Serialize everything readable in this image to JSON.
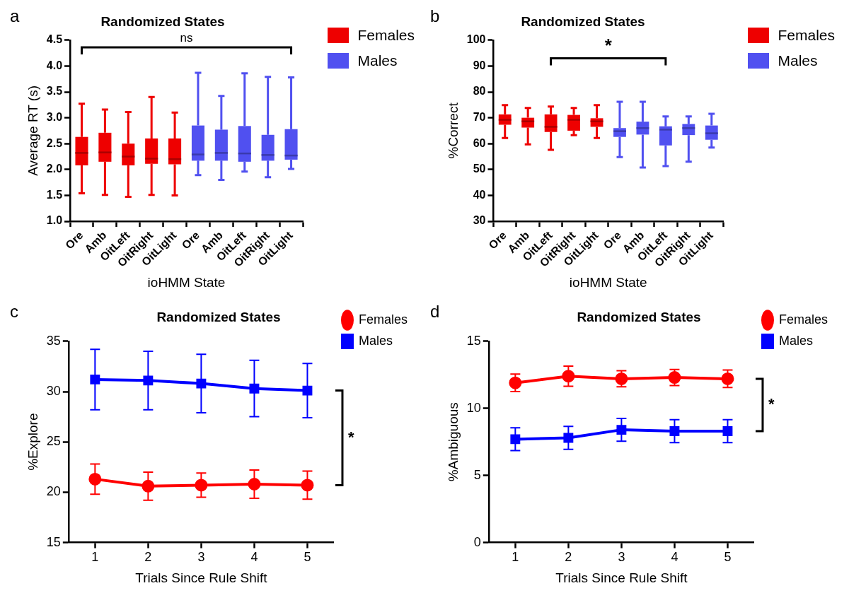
{
  "chart_data": [
    {
      "type": "box",
      "title": "Randomized States",
      "xlabel": "ioHMM State",
      "ylabel": "Average RT (s)",
      "annotations": [
        "a",
        "ns"
      ],
      "categories": [
        "Ore",
        "Amb",
        "OitLeft",
        "OitRight",
        "OitLight",
        "Ore",
        "Amb",
        "OitLeft",
        "OitRight",
        "OitLight"
      ],
      "ylim": [
        1.0,
        4.5
      ],
      "yticks": [
        {
          "value": 1,
          "label": "1.0"
        },
        1.5,
        {
          "value": 2,
          "label": "2.0"
        },
        2.5,
        {
          "value": 3,
          "label": "3.0"
        },
        3.5,
        {
          "value": 4,
          "label": "4.0"
        },
        4.5
      ],
      "legend": "top right",
      "series": [
        {
          "name": "Females",
          "color": "#ee0000",
          "boxes": [
            {
              "low": 1.54,
              "q1": 2.08,
              "median": 2.32,
              "q3": 2.63,
              "high": 3.27
            },
            {
              "low": 1.51,
              "q1": 2.15,
              "median": 2.33,
              "q3": 2.71,
              "high": 3.16
            },
            {
              "low": 1.47,
              "q1": 2.08,
              "median": 2.25,
              "q3": 2.5,
              "high": 3.11
            },
            {
              "low": 1.51,
              "q1": 2.11,
              "median": 2.21,
              "q3": 2.6,
              "high": 3.4
            },
            {
              "low": 1.5,
              "q1": 2.1,
              "median": 2.2,
              "q3": 2.6,
              "high": 3.1
            },
            null,
            null,
            null,
            null,
            null
          ]
        },
        {
          "name": "Males",
          "color": "#5050f0",
          "boxes": [
            null,
            null,
            null,
            null,
            null,
            {
              "low": 1.89,
              "q1": 2.17,
              "median": 2.29,
              "q3": 2.85,
              "high": 3.87
            },
            {
              "low": 1.8,
              "q1": 2.17,
              "median": 2.32,
              "q3": 2.77,
              "high": 3.42
            },
            {
              "low": 1.96,
              "q1": 2.15,
              "median": 2.31,
              "q3": 2.84,
              "high": 3.86
            },
            {
              "low": 1.85,
              "q1": 2.17,
              "median": 2.28,
              "q3": 2.67,
              "high": 3.79
            },
            {
              "low": 2.01,
              "q1": 2.19,
              "median": 2.27,
              "q3": 2.78,
              "high": 3.78
            }
          ]
        }
      ]
    },
    {
      "type": "box",
      "title": "Randomized States",
      "xlabel": "ioHMM State",
      "ylabel": "%Correct",
      "annotations": [
        "b",
        "*"
      ],
      "categories": [
        "Ore",
        "Amb",
        "OitLeft",
        "OitRight",
        "OitLight",
        "Ore",
        "Amb",
        "OitLeft",
        "OitRight",
        "OitLight"
      ],
      "ylim": [
        30,
        100
      ],
      "yticks": [
        30,
        40,
        50,
        60,
        70,
        80,
        90,
        100
      ],
      "legend": "top right",
      "series": [
        {
          "name": "Females",
          "color": "#ee0000",
          "boxes": [
            {
              "low": 62.2,
              "q1": 67.3,
              "median": 69.2,
              "q3": 71.3,
              "high": 74.9
            },
            {
              "low": 59.7,
              "q1": 66.2,
              "median": 68.6,
              "q3": 70.0,
              "high": 73.8
            },
            {
              "low": 57.6,
              "q1": 64.5,
              "median": 66.5,
              "q3": 71.3,
              "high": 74.3
            },
            {
              "low": 63.3,
              "q1": 65.0,
              "median": 69.2,
              "q3": 71.1,
              "high": 73.8
            },
            {
              "low": 62.2,
              "q1": 66.5,
              "median": 68.6,
              "q3": 69.8,
              "high": 74.9
            },
            null,
            null,
            null,
            null,
            null
          ]
        },
        {
          "name": "Males",
          "color": "#5050f0",
          "boxes": [
            null,
            null,
            null,
            null,
            null,
            {
              "low": 54.8,
              "q1": 62.6,
              "median": 64.8,
              "q3": 66.0,
              "high": 76.2
            },
            {
              "low": 50.8,
              "q1": 63.5,
              "median": 66.0,
              "q3": 68.5,
              "high": 76.2
            },
            {
              "low": 51.3,
              "q1": 59.3,
              "median": 65.4,
              "q3": 66.7,
              "high": 70.5
            },
            {
              "low": 53.0,
              "q1": 63.3,
              "median": 66.0,
              "q3": 67.6,
              "high": 70.5
            },
            {
              "low": 58.5,
              "q1": 61.5,
              "median": 64.0,
              "q3": 67.0,
              "high": 71.5
            }
          ]
        }
      ]
    },
    {
      "type": "line",
      "title": "Randomized States",
      "xlabel": "Trials Since Rule Shift",
      "ylabel": "%Explore",
      "annotations": [
        "c",
        "*"
      ],
      "categories": [
        "1",
        "2",
        "3",
        "4",
        "5"
      ],
      "ylim": [
        15,
        35
      ],
      "yticks": [
        15,
        20,
        25,
        30,
        35
      ],
      "legend": "top right",
      "series": [
        {
          "name": "Females",
          "color": "#ff0000",
          "marker": "circle",
          "values": [
            21.3,
            20.6,
            20.7,
            20.8,
            20.7
          ],
          "errors": [
            1.5,
            1.4,
            1.2,
            1.4,
            1.4
          ]
        },
        {
          "name": "Males",
          "color": "#0000ff",
          "marker": "square",
          "values": [
            31.2,
            31.1,
            30.8,
            30.3,
            30.1
          ],
          "errors": [
            3.0,
            2.9,
            2.9,
            2.8,
            2.7
          ]
        }
      ]
    },
    {
      "type": "line",
      "title": "Randomized States",
      "xlabel": "Trials Since Rule Shift",
      "ylabel": "%Ambiguous",
      "annotations": [
        "d",
        "*"
      ],
      "categories": [
        "1",
        "2",
        "3",
        "4",
        "5"
      ],
      "ylim": [
        0,
        15
      ],
      "yticks": [
        0,
        5,
        10,
        15
      ],
      "legend": "top right",
      "series": [
        {
          "name": "Females",
          "color": "#ff0000",
          "marker": "circle",
          "values": [
            11.9,
            12.4,
            12.2,
            12.3,
            12.2
          ],
          "errors": [
            0.65,
            0.75,
            0.6,
            0.6,
            0.65
          ]
        },
        {
          "name": "Males",
          "color": "#0000ff",
          "marker": "square",
          "values": [
            7.7,
            7.8,
            8.4,
            8.3,
            8.3
          ],
          "errors": [
            0.85,
            0.85,
            0.85,
            0.85,
            0.85
          ]
        }
      ]
    }
  ]
}
